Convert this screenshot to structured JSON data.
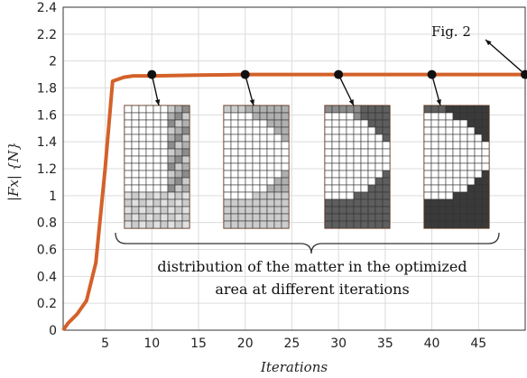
{
  "chart_data": {
    "type": "line",
    "title": "",
    "xlabel": "Iterations",
    "ylabel": "|Fx| {N}",
    "xlim": [
      0.5,
      50
    ],
    "ylim": [
      0,
      2.4
    ],
    "xticks": [
      5,
      10,
      15,
      20,
      25,
      30,
      35,
      40,
      45
    ],
    "yticks": [
      "0",
      "0.2",
      "0.4",
      "0.6",
      "0.8",
      "1",
      "1.2",
      "1.4",
      "1.6",
      "1.8",
      "2",
      "2.2",
      "2.4"
    ],
    "grid": true,
    "line_color": "#d4612a",
    "x": [
      0.5,
      1,
      2,
      3,
      4,
      5,
      5.8,
      7,
      8,
      10,
      15,
      20,
      25,
      30,
      35,
      40,
      45,
      50
    ],
    "y": [
      0,
      0.05,
      0.12,
      0.22,
      0.5,
      1.2,
      1.85,
      1.88,
      1.89,
      1.89,
      1.895,
      1.9,
      1.9,
      1.9,
      1.9,
      1.9,
      1.9,
      1.9
    ],
    "markers": [
      {
        "x": 10,
        "y": 1.9
      },
      {
        "x": 20,
        "y": 1.9
      },
      {
        "x": 30,
        "y": 1.9
      },
      {
        "x": 40,
        "y": 1.9
      },
      {
        "x": 50,
        "y": 1.9
      }
    ],
    "annotations": {
      "fig_label": "Fig. 2",
      "caption_line1": "distribution of the matter in the optimized",
      "caption_line2": "area at different iterations"
    },
    "insets": [
      {
        "iteration": 10
      },
      {
        "iteration": 20
      },
      {
        "iteration": 30
      },
      {
        "iteration": 40
      }
    ]
  }
}
